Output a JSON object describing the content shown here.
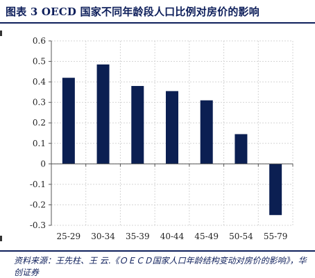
{
  "title": "图表 3   OECD 国家不同年龄段人口比例对房价的影响",
  "source": "资料来源：王先柱、王 云.《ＯＥＣＤ国家人口年龄结构变动对房价的影响》，华创证券",
  "colors": {
    "bar": "#0b1f52",
    "grid": "#d4d4d4",
    "title": "#0e1f5b"
  },
  "chart_data": {
    "type": "bar",
    "categories": [
      "25-29",
      "30-34",
      "35-39",
      "40-44",
      "45-49",
      "50-54",
      "55-79"
    ],
    "values": [
      0.42,
      0.485,
      0.38,
      0.355,
      0.31,
      0.145,
      -0.25
    ],
    "ylim": [
      -0.3,
      0.6
    ],
    "yticks": [
      0.6,
      0.5,
      0.4,
      0.3,
      0.2,
      0.1,
      0,
      -0.1,
      -0.2,
      -0.3
    ],
    "ytick_labels": [
      "0.6",
      "0.5",
      "0.4",
      "0.3",
      "0.2",
      "0.1",
      "0",
      "-0.1",
      "-0.2",
      "-0.3"
    ],
    "grid": true,
    "legend": false
  }
}
